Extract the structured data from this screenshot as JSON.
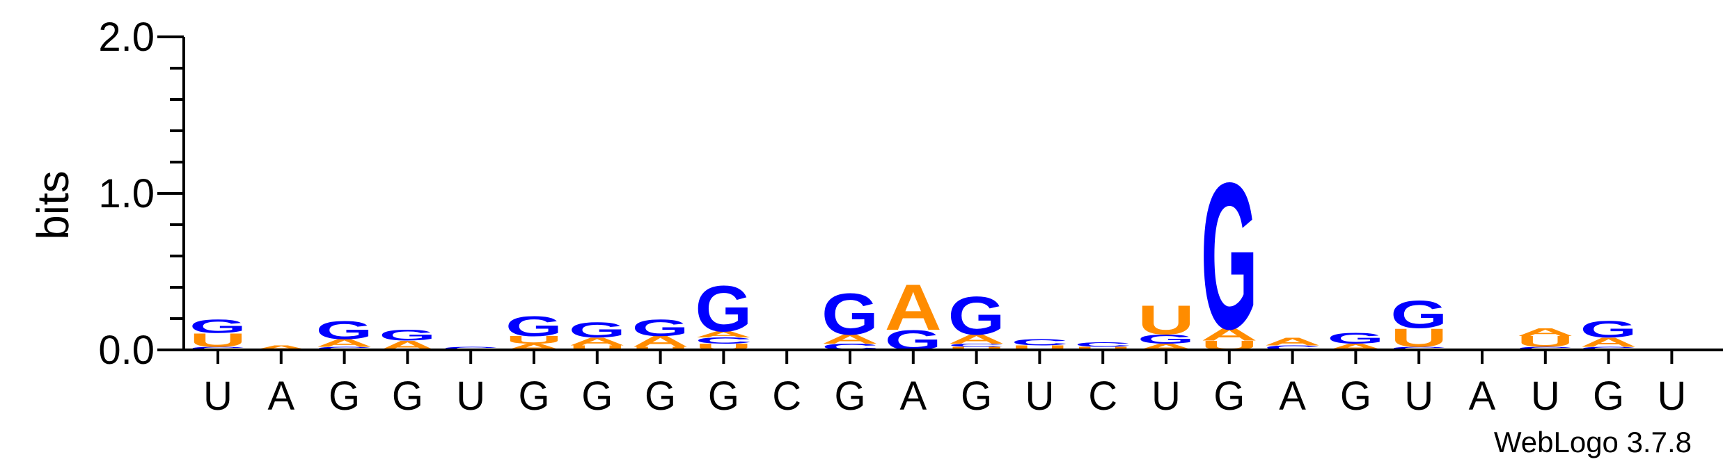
{
  "chart_data": {
    "type": "sequence-logo",
    "ylabel": "bits",
    "ylim": [
      0,
      2.0
    ],
    "yticks": [
      {
        "value": 0.0,
        "label": "0.0"
      },
      {
        "value": 1.0,
        "label": "1.0"
      },
      {
        "value": 2.0,
        "label": "2.0"
      }
    ],
    "colors": {
      "A": "#ff8c00",
      "U": "#ff8c00",
      "G": "#0000ff",
      "C": "#0000ff"
    },
    "positions": [
      {
        "label": "U",
        "stack": [
          {
            "base": "C",
            "height": 0.02
          },
          {
            "base": "U",
            "height": 0.09
          },
          {
            "base": "G",
            "height": 0.09
          }
        ]
      },
      {
        "label": "A",
        "stack": [
          {
            "base": "A",
            "height": 0.03
          }
        ]
      },
      {
        "label": "G",
        "stack": [
          {
            "base": "C",
            "height": 0.02
          },
          {
            "base": "A",
            "height": 0.05
          },
          {
            "base": "G",
            "height": 0.12
          }
        ]
      },
      {
        "label": "G",
        "stack": [
          {
            "base": "A",
            "height": 0.06
          },
          {
            "base": "G",
            "height": 0.07
          }
        ]
      },
      {
        "label": "U",
        "stack": [
          {
            "base": "C",
            "height": 0.02
          }
        ]
      },
      {
        "label": "G",
        "stack": [
          {
            "base": "A",
            "height": 0.04
          },
          {
            "base": "U",
            "height": 0.05
          },
          {
            "base": "G",
            "height": 0.13
          }
        ]
      },
      {
        "label": "G",
        "stack": [
          {
            "base": "U",
            "height": 0.03
          },
          {
            "base": "A",
            "height": 0.05
          },
          {
            "base": "G",
            "height": 0.1
          }
        ]
      },
      {
        "label": "G",
        "stack": [
          {
            "base": "U",
            "height": 0.02
          },
          {
            "base": "A",
            "height": 0.07
          },
          {
            "base": "G",
            "height": 0.11
          }
        ]
      },
      {
        "label": "G",
        "stack": [
          {
            "base": "U",
            "height": 0.04
          },
          {
            "base": "C",
            "height": 0.04
          },
          {
            "base": "A",
            "height": 0.04
          },
          {
            "base": "G",
            "height": 0.3
          }
        ]
      },
      {
        "label": "C",
        "stack": []
      },
      {
        "label": "G",
        "stack": [
          {
            "base": "C",
            "height": 0.04
          },
          {
            "base": "A",
            "height": 0.06
          },
          {
            "base": "G",
            "height": 0.27
          }
        ]
      },
      {
        "label": "A",
        "stack": [
          {
            "base": "G",
            "height": 0.13
          },
          {
            "base": "A",
            "height": 0.3
          }
        ]
      },
      {
        "label": "G",
        "stack": [
          {
            "base": "U",
            "height": 0.02
          },
          {
            "base": "C",
            "height": 0.02
          },
          {
            "base": "A",
            "height": 0.06
          },
          {
            "base": "G",
            "height": 0.25
          }
        ]
      },
      {
        "label": "U",
        "stack": [
          {
            "base": "U",
            "height": 0.03
          },
          {
            "base": "C",
            "height": 0.04
          }
        ]
      },
      {
        "label": "C",
        "stack": [
          {
            "base": "U",
            "height": 0.02
          },
          {
            "base": "C",
            "height": 0.03
          }
        ]
      },
      {
        "label": "U",
        "stack": [
          {
            "base": "A",
            "height": 0.04
          },
          {
            "base": "G",
            "height": 0.06
          },
          {
            "base": "U",
            "height": 0.19
          }
        ]
      },
      {
        "label": "G",
        "stack": [
          {
            "base": "U",
            "height": 0.06
          },
          {
            "base": "A",
            "height": 0.08
          },
          {
            "base": "G",
            "height": 0.96
          }
        ]
      },
      {
        "label": "A",
        "stack": [
          {
            "base": "C",
            "height": 0.03
          },
          {
            "base": "A",
            "height": 0.05
          }
        ]
      },
      {
        "label": "G",
        "stack": [
          {
            "base": "A",
            "height": 0.04
          },
          {
            "base": "G",
            "height": 0.07
          }
        ]
      },
      {
        "label": "U",
        "stack": [
          {
            "base": "C",
            "height": 0.02
          },
          {
            "base": "U",
            "height": 0.12
          },
          {
            "base": "G",
            "height": 0.18
          }
        ]
      },
      {
        "label": "A",
        "stack": []
      },
      {
        "label": "U",
        "stack": [
          {
            "base": "C",
            "height": 0.02
          },
          {
            "base": "U",
            "height": 0.07
          },
          {
            "base": "A",
            "height": 0.05
          }
        ]
      },
      {
        "label": "G",
        "stack": [
          {
            "base": "C",
            "height": 0.02
          },
          {
            "base": "A",
            "height": 0.06
          },
          {
            "base": "G",
            "height": 0.11
          }
        ]
      },
      {
        "label": "U",
        "stack": []
      }
    ]
  },
  "footer": {
    "credit": "WebLogo 3.7.8"
  }
}
